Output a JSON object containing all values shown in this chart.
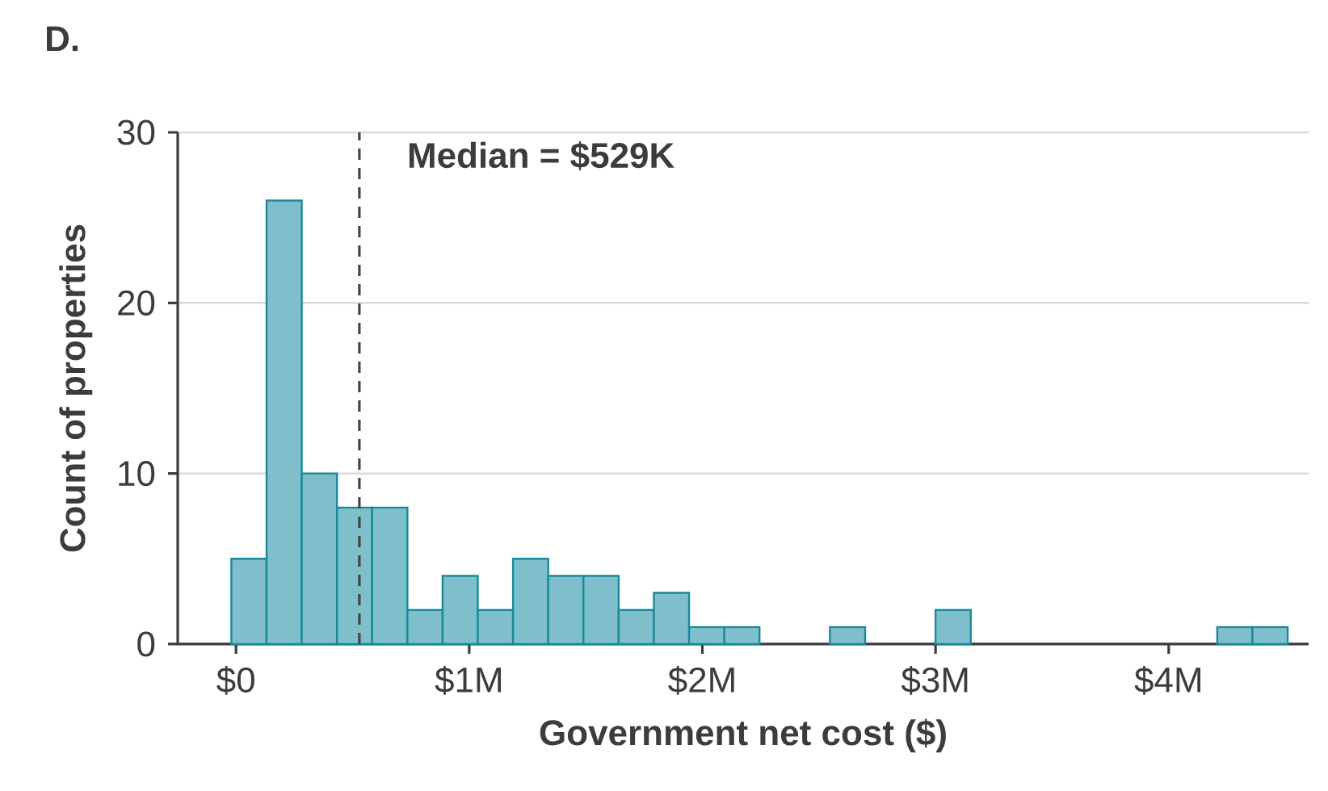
{
  "chart_data": {
    "type": "histogram",
    "title": "D.",
    "xlabel": "Government net cost ($)",
    "ylabel": "Count of properties",
    "bins": [
      -0.02,
      0.131,
      0.282,
      0.433,
      0.584,
      0.735,
      0.886,
      1.037,
      1.188,
      1.339,
      1.49,
      1.641,
      1.792,
      1.943,
      2.094,
      2.245,
      2.396,
      2.547,
      2.698,
      2.849,
      3.0,
      3.151,
      3.302,
      3.453,
      3.604,
      3.755,
      3.906,
      4.057,
      4.208,
      4.359,
      4.51
    ],
    "values": [
      5,
      26,
      10,
      8,
      8,
      2,
      4,
      2,
      5,
      4,
      4,
      2,
      3,
      1,
      1,
      0,
      0,
      1,
      0,
      0,
      2,
      0,
      0,
      0,
      0,
      0,
      0,
      0,
      1,
      1
    ],
    "color": "#7fbfcc",
    "xlim": [
      -0.25,
      4.6
    ],
    "ylim": [
      0,
      30
    ],
    "xticks": [
      {
        "value": 0,
        "label": "$0"
      },
      {
        "value": 1,
        "label": "$1M"
      },
      {
        "value": 2,
        "label": "$2M"
      },
      {
        "value": 3,
        "label": "$3M"
      },
      {
        "value": 4,
        "label": "$4M"
      }
    ],
    "yticks": [
      0,
      10,
      20,
      30
    ],
    "grid": "y",
    "ref_lines": [
      {
        "axis": "x",
        "value": 0.529,
        "label": "Median = $529K",
        "color": "#444444",
        "line_style": "dashed"
      }
    ]
  }
}
